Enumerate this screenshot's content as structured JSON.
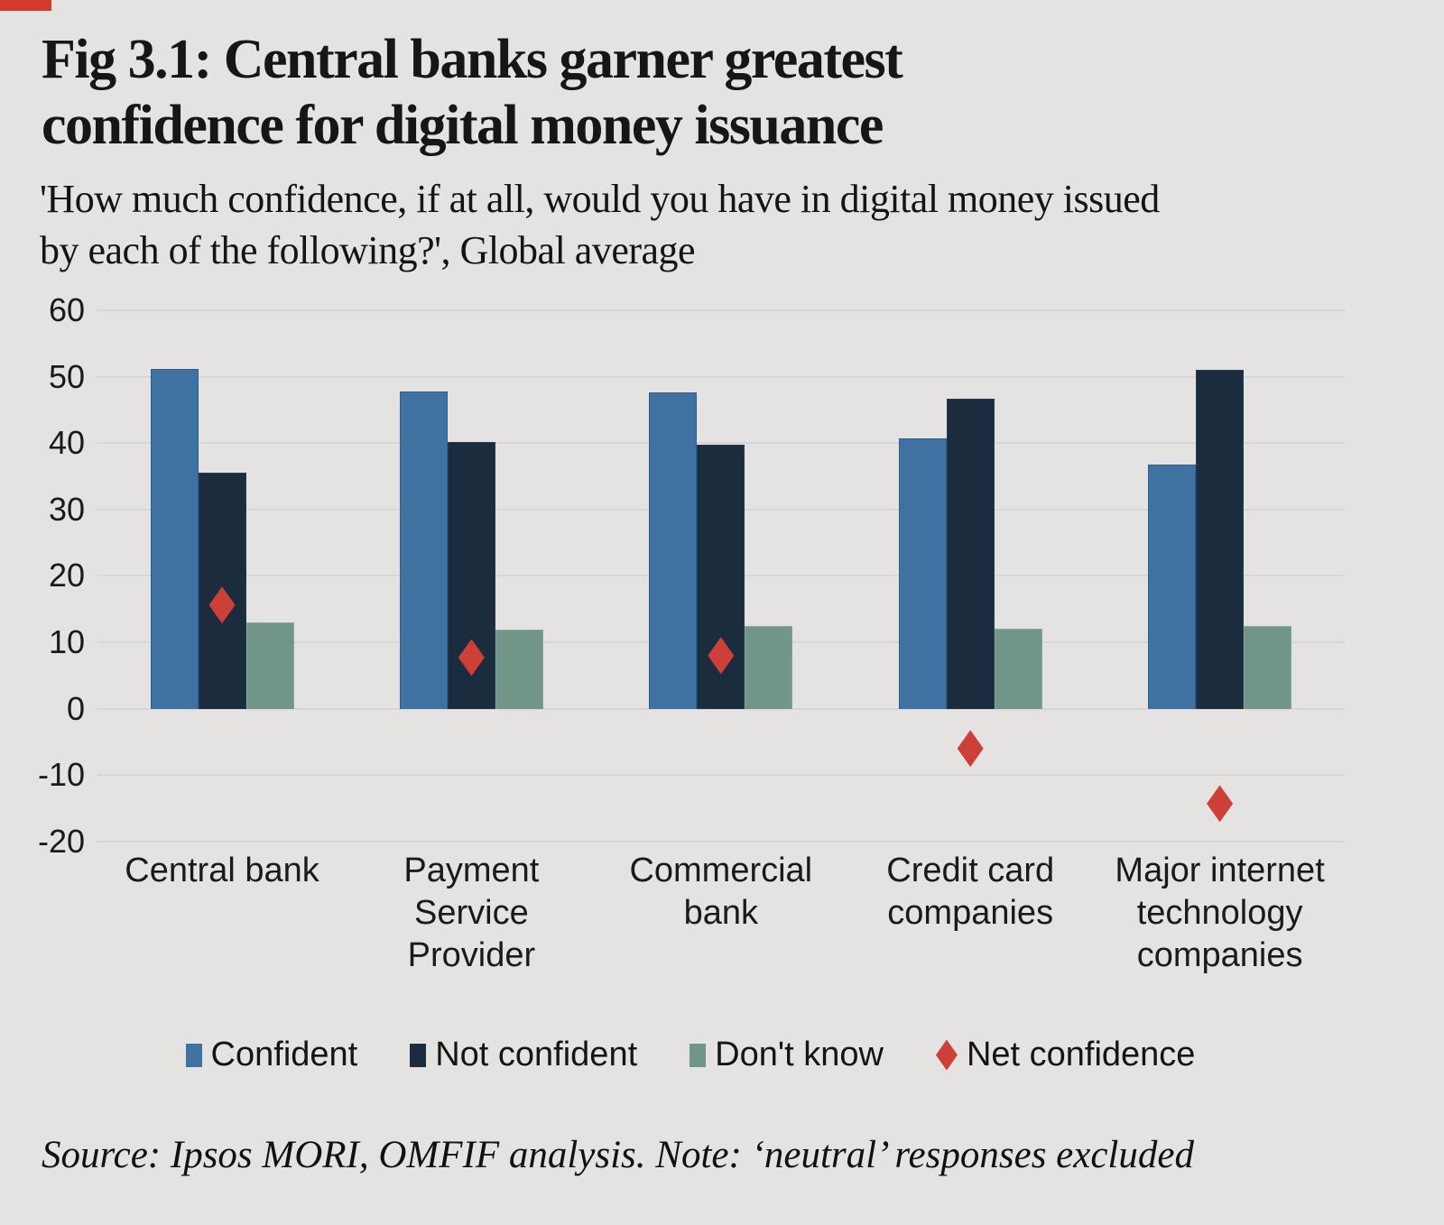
{
  "page": {
    "background_color": "#e4e3e1",
    "accent_bar_color": "#d23a30"
  },
  "header": {
    "title_lines": [
      "Fig 3.1: Central banks garner greatest",
      "confidence for digital money issuance"
    ],
    "subtitle_lines": [
      "'How much confidence, if at all, would you have in digital money issued",
      "by each of the following?', Global average"
    ]
  },
  "chart_data": {
    "type": "bar",
    "title": "Fig 3.1: Central banks garner greatest confidence for digital money issuance",
    "subtitle": "'How much confidence, if at all, would you have in digital money issued by each of the following?', Global average",
    "categories": [
      "Central bank",
      "Payment Service Provider",
      "Commercial bank",
      "Credit card companies",
      "Major internet technology companies"
    ],
    "category_label_lines": [
      [
        "Central bank"
      ],
      [
        "Payment",
        "Service",
        "Provider"
      ],
      [
        "Commercial",
        "bank"
      ],
      [
        "Credit card",
        "companies"
      ],
      [
        "Major internet",
        "technology",
        "companies"
      ]
    ],
    "series": [
      {
        "name": "Confident",
        "color": "#3f72a1",
        "border_color": "#2d5f91",
        "values": [
          51.2,
          47.8,
          47.7,
          40.7,
          36.7
        ]
      },
      {
        "name": "Not confident",
        "color": "#1b2c3e",
        "border_color": "#243d54",
        "values": [
          35.6,
          40.1,
          39.7,
          46.7,
          51.0
        ]
      },
      {
        "name": "Don't know",
        "color": "#719589",
        "border_color": "#84a79b",
        "values": [
          13.0,
          11.9,
          12.4,
          12.1,
          12.4
        ]
      }
    ],
    "marker_series": {
      "name": "Net confidence",
      "shape": "diamond",
      "color": "#cd4038",
      "values": [
        15.6,
        7.7,
        8.0,
        -6.0,
        -14.3
      ]
    },
    "y_axis": {
      "min": -20,
      "max": 60,
      "tick_step": 10,
      "tick_labels": [
        "60",
        "50",
        "40",
        "30",
        "20",
        "10",
        "0",
        "-10",
        "-20"
      ]
    },
    "grid": true,
    "gridline_color": "#d7d6d4",
    "legend_position": "bottom"
  },
  "legend": {
    "items": [
      {
        "label": "Confident",
        "marker": "square",
        "color": "#3f72a1"
      },
      {
        "label": "Not confident",
        "marker": "square",
        "color": "#1b2c3e"
      },
      {
        "label": "Don't know",
        "marker": "square",
        "color": "#719589"
      },
      {
        "label": "Net confidence",
        "marker": "diamond",
        "color": "#cd4038"
      }
    ]
  },
  "footer": {
    "source_note": "Source: Ipsos MORI, OMFIF analysis. Note: ‘neutral’ responses excluded"
  }
}
